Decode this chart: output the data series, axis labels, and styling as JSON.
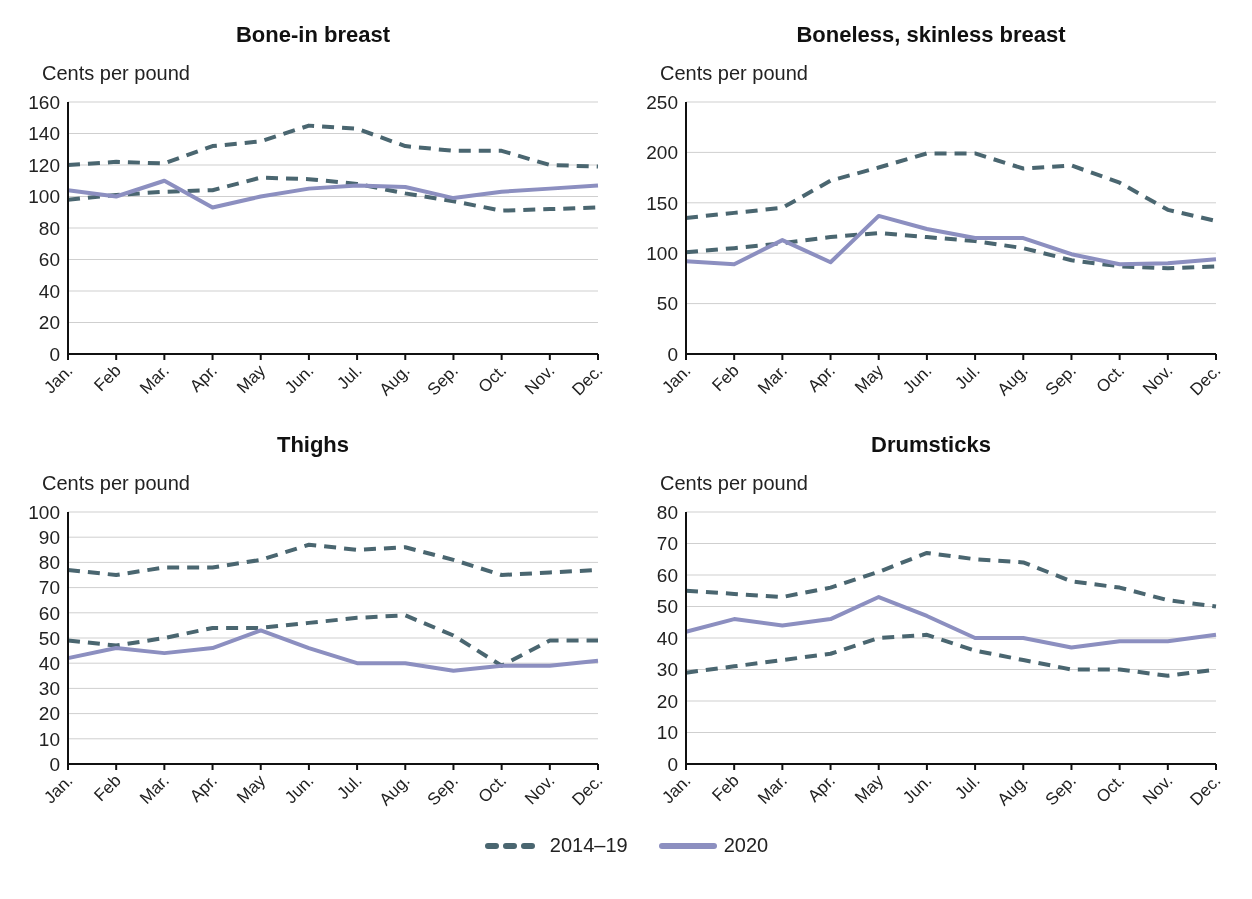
{
  "chart_data": [
    {
      "type": "line",
      "title": "Bone-in breast",
      "ylabel": "Cents per pound",
      "categories": [
        "Jan.",
        "Feb",
        "Mar.",
        "Apr.",
        "May",
        "Jun.",
        "Jul.",
        "Aug.",
        "Sep.",
        "Oct.",
        "Nov.",
        "Dec."
      ],
      "ylim": [
        0,
        160
      ],
      "yticks": [
        0,
        20,
        40,
        60,
        80,
        100,
        120,
        140,
        160
      ],
      "grid": "y",
      "marker": "none",
      "series": [
        {
          "color": "#4a6670",
          "line_style": "dashed",
          "values": [
            120,
            122,
            121,
            132,
            135,
            145,
            143,
            132,
            129,
            129,
            120,
            119
          ]
        },
        {
          "color": "#4a6670",
          "line_style": "dashed",
          "values": [
            98,
            101,
            103,
            104,
            112,
            111,
            108,
            102,
            97,
            91,
            92,
            93
          ]
        },
        {
          "color": "#8c8fc0",
          "line_style": "solid",
          "values": [
            104,
            100,
            110,
            93,
            100,
            105,
            107,
            106,
            99,
            103,
            105,
            107
          ]
        }
      ]
    },
    {
      "type": "line",
      "title": "Boneless, skinless breast",
      "ylabel": "Cents per pound",
      "categories": [
        "Jan.",
        "Feb",
        "Mar.",
        "Apr.",
        "May",
        "Jun.",
        "Jul.",
        "Aug.",
        "Sep.",
        "Oct.",
        "Nov.",
        "Dec."
      ],
      "ylim": [
        0,
        250
      ],
      "yticks": [
        0,
        50,
        100,
        150,
        200,
        250
      ],
      "grid": "y",
      "marker": "none",
      "series": [
        {
          "color": "#4a6670",
          "line_style": "dashed",
          "values": [
            135,
            140,
            145,
            172,
            185,
            199,
            199,
            184,
            187,
            170,
            143,
            132
          ]
        },
        {
          "color": "#4a6670",
          "line_style": "dashed",
          "values": [
            101,
            105,
            110,
            116,
            120,
            116,
            112,
            105,
            93,
            87,
            85,
            87
          ]
        },
        {
          "color": "#8c8fc0",
          "line_style": "solid",
          "values": [
            92,
            89,
            113,
            91,
            137,
            124,
            115,
            115,
            99,
            89,
            90,
            94
          ]
        }
      ]
    },
    {
      "type": "line",
      "title": "Thighs",
      "ylabel": "Cents per pound",
      "categories": [
        "Jan.",
        "Feb",
        "Mar.",
        "Apr.",
        "May",
        "Jun.",
        "Jul.",
        "Aug.",
        "Sep.",
        "Oct.",
        "Nov.",
        "Dec."
      ],
      "ylim": [
        0,
        100
      ],
      "yticks": [
        0,
        10,
        20,
        30,
        40,
        50,
        60,
        70,
        80,
        90,
        100
      ],
      "grid": "y",
      "marker": "none",
      "series": [
        {
          "color": "#4a6670",
          "line_style": "dashed",
          "values": [
            77,
            75,
            78,
            78,
            81,
            87,
            85,
            86,
            81,
            75,
            76,
            77
          ]
        },
        {
          "color": "#4a6670",
          "line_style": "dashed",
          "values": [
            49,
            47,
            50,
            54,
            54,
            56,
            58,
            59,
            51,
            39,
            49,
            49
          ]
        },
        {
          "color": "#8c8fc0",
          "line_style": "solid",
          "values": [
            42,
            46,
            44,
            46,
            53,
            46,
            40,
            40,
            37,
            39,
            39,
            41
          ]
        }
      ]
    },
    {
      "type": "line",
      "title": "Drumsticks",
      "ylabel": "Cents per pound",
      "categories": [
        "Jan.",
        "Feb",
        "Mar.",
        "Apr.",
        "May",
        "Jun.",
        "Jul.",
        "Aug.",
        "Sep.",
        "Oct.",
        "Nov.",
        "Dec."
      ],
      "ylim": [
        0,
        80
      ],
      "yticks": [
        0,
        10,
        20,
        30,
        40,
        50,
        60,
        70,
        80
      ],
      "grid": "y",
      "legend": "bottom",
      "marker": "none",
      "series": [
        {
          "name": "2014–19",
          "color": "#4a6670",
          "line_style": "dashed",
          "values": [
            55,
            54,
            53,
            56,
            61,
            67,
            65,
            64,
            58,
            56,
            52,
            50
          ]
        },
        {
          "color": "#4a6670",
          "line_style": "dashed",
          "values": [
            29,
            31,
            33,
            35,
            40,
            41,
            36,
            33,
            30,
            30,
            28,
            30
          ]
        },
        {
          "name": "2020",
          "color": "#8c8fc0",
          "line_style": "solid",
          "values": [
            42,
            46,
            44,
            46,
            53,
            47,
            40,
            40,
            37,
            39,
            39,
            41
          ]
        }
      ]
    }
  ]
}
